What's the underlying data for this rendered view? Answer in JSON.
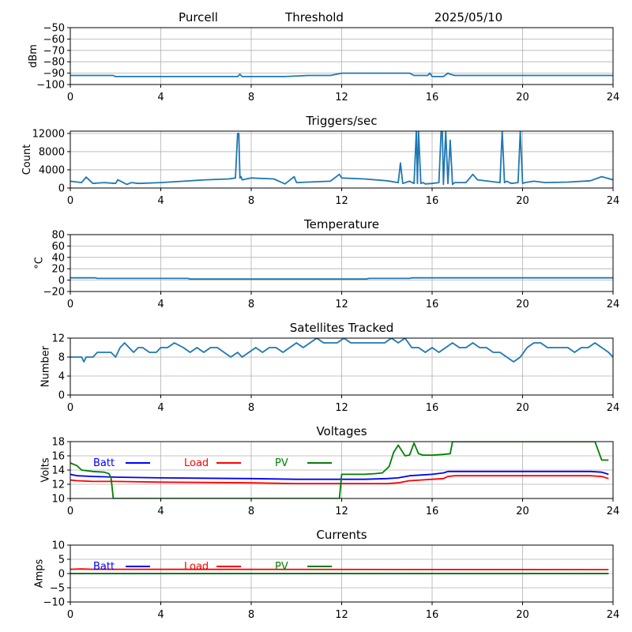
{
  "header": {
    "station": "Purcell",
    "mode": "Threshold",
    "date": "2025/05/10"
  },
  "colors": {
    "series": "#1f77b4",
    "batt": "#0000ff",
    "load": "#ff0000",
    "pv": "#008000",
    "grid": "#b0b0b0"
  },
  "x_ticks": [
    "0",
    "4",
    "8",
    "12",
    "16",
    "20",
    "24"
  ],
  "chart_data": [
    {
      "id": "signal",
      "type": "line",
      "title": "",
      "xlabel": "",
      "ylabel": "dBm",
      "xlim": [
        0,
        24
      ],
      "ylim": [
        -100,
        -50
      ],
      "yticks": [
        -100,
        -90,
        -80,
        -70,
        -60,
        -50
      ],
      "yticklabels": [
        "−100",
        "−90",
        "−80",
        "−70",
        "−60",
        "−50"
      ],
      "grid": true,
      "series": [
        {
          "color": "#1f77b4",
          "x": [
            0,
            1.9,
            2.0,
            7.4,
            7.5,
            7.6,
            9.5,
            10.5,
            11.5,
            12.0,
            15.0,
            15.2,
            15.8,
            15.9,
            16.0,
            16.5,
            16.7,
            16.8,
            17.0,
            24
          ],
          "y": [
            -92,
            -92,
            -93,
            -93,
            -91,
            -93,
            -93,
            -92,
            -92,
            -90,
            -90,
            -92,
            -92,
            -90,
            -93,
            -93,
            -90,
            -91,
            -92,
            -92
          ]
        }
      ]
    },
    {
      "id": "triggers",
      "type": "line",
      "title": "Triggers/sec",
      "xlabel": "",
      "ylabel": "Count",
      "xlim": [
        0,
        24
      ],
      "ylim": [
        0,
        12500
      ],
      "yticks": [
        0,
        4000,
        8000,
        12000
      ],
      "yticklabels": [
        "0",
        "4000",
        "8000",
        "12000"
      ],
      "grid": true,
      "series": [
        {
          "color": "#1f77b4",
          "x": [
            0,
            0.5,
            0.7,
            1.0,
            1.5,
            2.0,
            2.1,
            2.5,
            2.7,
            3.0,
            4.0,
            5.0,
            6.0,
            7.0,
            7.3,
            7.4,
            7.45,
            7.5,
            7.55,
            7.6,
            8.0,
            9.0,
            9.5,
            9.9,
            10.0,
            10.5,
            11.5,
            11.9,
            12.0,
            13.0,
            14.0,
            14.5,
            14.6,
            14.7,
            15.0,
            15.2,
            15.3,
            15.35,
            15.4,
            15.5,
            15.6,
            15.7,
            16.0,
            16.3,
            16.4,
            16.45,
            16.5,
            16.6,
            16.7,
            16.8,
            16.9,
            17.0,
            17.5,
            17.8,
            18.0,
            18.5,
            19.0,
            19.1,
            19.2,
            19.3,
            19.5,
            19.8,
            19.9,
            20.0,
            20.1,
            20.5,
            21.0,
            22.0,
            23.0,
            23.5,
            24
          ],
          "y": [
            1500,
            1200,
            2400,
            1000,
            1200,
            1000,
            1800,
            800,
            1200,
            1000,
            1200,
            1500,
            1800,
            2000,
            2200,
            12000,
            12000,
            2200,
            2500,
            1800,
            2200,
            2000,
            900,
            2500,
            1200,
            1300,
            1500,
            3000,
            2200,
            2000,
            1600,
            1200,
            5500,
            1000,
            1500,
            1000,
            12500,
            1000,
            12500,
            1000,
            1200,
            900,
            1000,
            1200,
            12500,
            12500,
            800,
            12500,
            1000,
            10500,
            800,
            1200,
            1200,
            3000,
            1800,
            1500,
            1200,
            12500,
            1200,
            1500,
            1000,
            1200,
            12500,
            1000,
            1200,
            1500,
            1200,
            1300,
            1600,
            2500,
            1800
          ]
        }
      ]
    },
    {
      "id": "temperature",
      "type": "line",
      "title": "Temperature",
      "xlabel": "",
      "ylabel": "°C",
      "xlim": [
        0,
        24
      ],
      "ylim": [
        -20,
        80
      ],
      "yticks": [
        -20,
        0,
        20,
        40,
        60,
        80
      ],
      "yticklabels": [
        "−20",
        "0",
        "20",
        "40",
        "60",
        "80"
      ],
      "grid": true,
      "series": [
        {
          "color": "#1f77b4",
          "x": [
            0,
            1.1,
            1.2,
            5.2,
            5.3,
            13.1,
            13.2,
            15.0,
            15.1,
            24
          ],
          "y": [
            4,
            4,
            3,
            3,
            2,
            2,
            3,
            3,
            4,
            4
          ]
        }
      ]
    },
    {
      "id": "satellites",
      "type": "line",
      "title": "Satellites Tracked",
      "xlabel": "",
      "ylabel": "Number",
      "xlim": [
        0,
        24
      ],
      "ylim": [
        0,
        12
      ],
      "yticks": [
        0,
        4,
        8,
        12
      ],
      "yticklabels": [
        "0",
        "4",
        "8",
        "12"
      ],
      "grid": true,
      "series": [
        {
          "color": "#1f77b4",
          "x": [
            0,
            0.5,
            0.6,
            0.7,
            1.0,
            1.2,
            1.5,
            1.8,
            2.0,
            2.2,
            2.4,
            2.6,
            2.8,
            3.0,
            3.2,
            3.5,
            3.8,
            4.0,
            4.3,
            4.6,
            5.0,
            5.3,
            5.6,
            5.9,
            6.2,
            6.5,
            6.8,
            7.1,
            7.4,
            7.6,
            7.9,
            8.2,
            8.5,
            8.8,
            9.1,
            9.4,
            9.7,
            10.0,
            10.3,
            10.6,
            10.9,
            11.2,
            11.5,
            11.8,
            12.1,
            12.4,
            12.7,
            13.0,
            13.3,
            13.6,
            13.9,
            14.2,
            14.5,
            14.8,
            15.1,
            15.4,
            15.7,
            16.0,
            16.3,
            16.6,
            16.9,
            17.2,
            17.5,
            17.8,
            18.1,
            18.4,
            18.7,
            19.0,
            19.3,
            19.6,
            19.9,
            20.2,
            20.5,
            20.8,
            21.1,
            21.4,
            21.7,
            22.0,
            22.3,
            22.6,
            22.9,
            23.2,
            23.5,
            23.8,
            24
          ],
          "y": [
            8,
            8,
            7,
            8,
            8,
            9,
            9,
            9,
            8,
            10,
            11,
            10,
            9,
            10,
            10,
            9,
            9,
            10,
            10,
            11,
            10,
            9,
            10,
            9,
            10,
            10,
            9,
            8,
            9,
            8,
            9,
            10,
            9,
            10,
            10,
            9,
            10,
            11,
            10,
            11,
            12,
            11,
            11,
            11,
            12,
            11,
            11,
            11,
            11,
            11,
            11,
            12,
            11,
            12,
            10,
            10,
            9,
            10,
            9,
            10,
            11,
            10,
            10,
            11,
            10,
            10,
            9,
            9,
            8,
            7,
            8,
            10,
            11,
            11,
            10,
            10,
            10,
            10,
            9,
            10,
            10,
            11,
            10,
            9,
            8
          ]
        }
      ]
    },
    {
      "id": "voltages",
      "type": "line",
      "title": "Voltages",
      "xlabel": "",
      "ylabel": "Volts",
      "xlim": [
        0,
        24
      ],
      "ylim": [
        10,
        18
      ],
      "yticks": [
        10,
        12,
        14,
        16,
        18
      ],
      "yticklabels": [
        "10",
        "12",
        "14",
        "16",
        "18"
      ],
      "grid": true,
      "legend": [
        "Batt",
        "Load",
        "PV"
      ],
      "series": [
        {
          "name": "Batt",
          "color": "#0000ff",
          "x": [
            0,
            0.3,
            1.0,
            2.0,
            4.0,
            8.0,
            10.0,
            12.0,
            13.0,
            14.0,
            14.5,
            15.0,
            15.5,
            16.0,
            16.5,
            16.7,
            17.0,
            20.0,
            23.0,
            23.5,
            23.8
          ],
          "y": [
            13.4,
            13.2,
            13.1,
            13.0,
            12.9,
            12.8,
            12.7,
            12.7,
            12.7,
            12.8,
            12.9,
            13.2,
            13.3,
            13.4,
            13.6,
            13.8,
            13.8,
            13.8,
            13.8,
            13.7,
            13.4
          ]
        },
        {
          "name": "Load",
          "color": "#ff0000",
          "x": [
            0,
            0.3,
            1.0,
            2.0,
            4.0,
            8.0,
            10.0,
            12.0,
            13.0,
            14.0,
            14.5,
            15.0,
            15.5,
            16.0,
            16.5,
            16.7,
            17.0,
            20.0,
            23.0,
            23.5,
            23.8
          ],
          "y": [
            12.6,
            12.5,
            12.4,
            12.4,
            12.3,
            12.2,
            12.1,
            12.1,
            12.1,
            12.1,
            12.2,
            12.5,
            12.6,
            12.7,
            12.8,
            13.1,
            13.2,
            13.2,
            13.2,
            13.1,
            12.8
          ]
        },
        {
          "name": "PV",
          "color": "#008000",
          "x": [
            0,
            0.3,
            0.5,
            1.0,
            1.5,
            1.7,
            1.8,
            1.9,
            11.9,
            12.0,
            13.0,
            13.5,
            13.8,
            14.1,
            14.3,
            14.5,
            14.8,
            15.0,
            15.2,
            15.4,
            15.6,
            16.0,
            16.5,
            16.8,
            16.9,
            23.2,
            23.5,
            23.8
          ],
          "y": [
            15.0,
            14.6,
            14.0,
            13.8,
            13.7,
            13.5,
            13.0,
            10.0,
            10.0,
            13.4,
            13.4,
            13.5,
            13.6,
            14.5,
            16.5,
            17.5,
            16.0,
            16.1,
            17.8,
            16.3,
            16.1,
            16.1,
            16.2,
            16.3,
            18.0,
            18.0,
            15.4,
            15.4
          ]
        }
      ]
    },
    {
      "id": "currents",
      "type": "line",
      "title": "Currents",
      "xlabel": "",
      "ylabel": "Amps",
      "xlim": [
        0,
        24
      ],
      "ylim": [
        -10,
        10
      ],
      "yticks": [
        -10,
        -5,
        0,
        5,
        10
      ],
      "yticklabels": [
        "−10",
        "−5",
        "0",
        "5",
        "10"
      ],
      "grid": true,
      "legend": [
        "Batt",
        "Load",
        "PV"
      ],
      "series": [
        {
          "name": "Batt",
          "color": "#0000ff",
          "x": [
            0,
            23.8
          ],
          "y": [
            0.0,
            0.0
          ]
        },
        {
          "name": "Load",
          "color": "#ff0000",
          "x": [
            0,
            0.5,
            1.0,
            23.8
          ],
          "y": [
            1.5,
            1.6,
            1.5,
            1.4
          ]
        },
        {
          "name": "PV",
          "color": "#008000",
          "x": [
            0,
            23.8
          ],
          "y": [
            0.0,
            0.0
          ]
        }
      ]
    }
  ]
}
